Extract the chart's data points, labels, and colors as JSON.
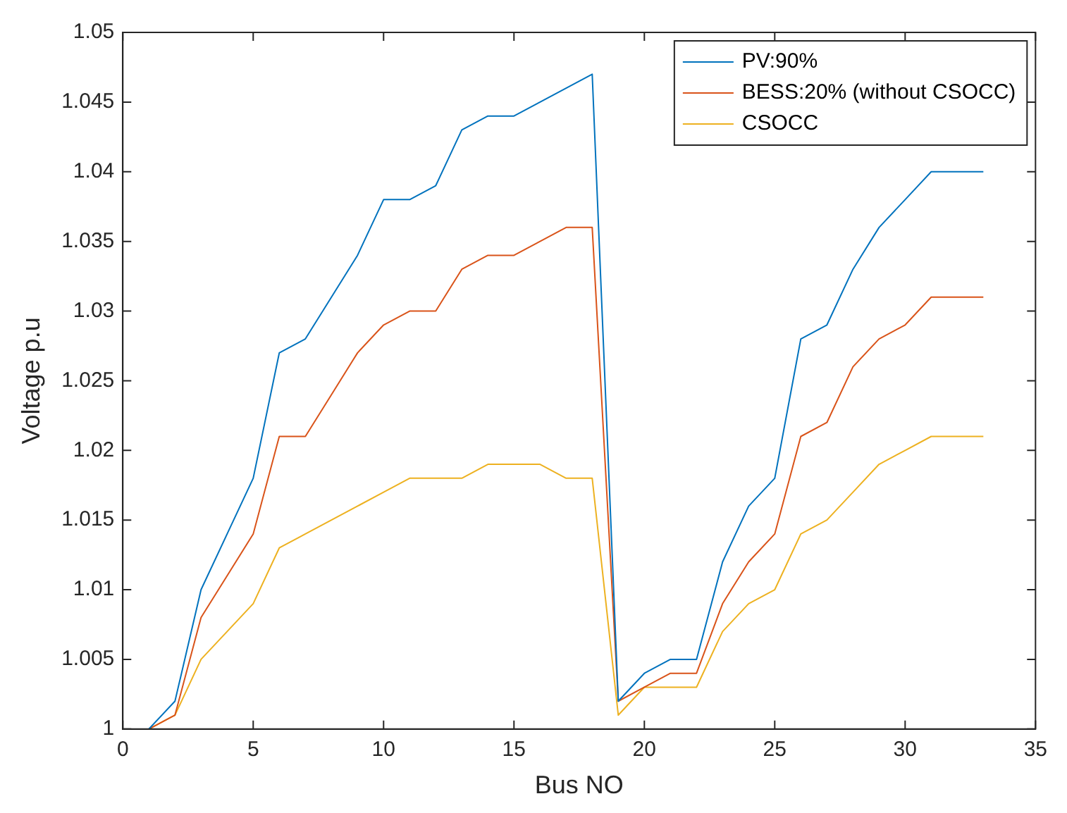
{
  "chart_data": {
    "type": "line",
    "xlabel": "Bus NO",
    "ylabel": "Voltage p.u",
    "x": [
      1,
      2,
      3,
      4,
      5,
      6,
      7,
      8,
      9,
      10,
      11,
      12,
      13,
      14,
      15,
      16,
      17,
      18,
      19,
      20,
      21,
      22,
      23,
      24,
      25,
      26,
      27,
      28,
      29,
      30,
      31,
      32,
      33
    ],
    "series": [
      {
        "name": "PV:90%",
        "color": "#0072bd",
        "values": [
          1.0,
          1.002,
          1.01,
          1.014,
          1.018,
          1.027,
          1.028,
          1.031,
          1.034,
          1.038,
          1.038,
          1.039,
          1.043,
          1.044,
          1.044,
          1.045,
          1.046,
          1.047,
          1.002,
          1.004,
          1.005,
          1.005,
          1.012,
          1.016,
          1.018,
          1.028,
          1.029,
          1.033,
          1.036,
          1.038,
          1.04,
          1.04,
          1.04
        ]
      },
      {
        "name": "BESS:20% (without CSOCC)",
        "color": "#d95319",
        "values": [
          1.0,
          1.001,
          1.008,
          1.011,
          1.014,
          1.021,
          1.021,
          1.024,
          1.027,
          1.029,
          1.03,
          1.03,
          1.033,
          1.034,
          1.034,
          1.035,
          1.036,
          1.036,
          1.002,
          1.003,
          1.004,
          1.004,
          1.009,
          1.012,
          1.014,
          1.021,
          1.022,
          1.026,
          1.028,
          1.029,
          1.031,
          1.031,
          1.031
        ]
      },
      {
        "name": "CSOCC",
        "color": "#edb120",
        "values": [
          1.0,
          1.001,
          1.005,
          1.007,
          1.009,
          1.013,
          1.014,
          1.015,
          1.016,
          1.017,
          1.018,
          1.018,
          1.018,
          1.019,
          1.019,
          1.019,
          1.018,
          1.018,
          1.001,
          1.003,
          1.003,
          1.003,
          1.007,
          1.009,
          1.01,
          1.014,
          1.015,
          1.017,
          1.019,
          1.02,
          1.021,
          1.021,
          1.021
        ]
      }
    ],
    "xlim": [
      0,
      35
    ],
    "xticks": [
      0,
      5,
      10,
      15,
      20,
      25,
      30,
      35
    ],
    "ylim": [
      1,
      1.05
    ],
    "yticks": [
      1,
      1.005,
      1.01,
      1.015,
      1.02,
      1.025,
      1.03,
      1.035,
      1.04,
      1.045,
      1.05
    ],
    "legend": "top right",
    "grid": false,
    "marker": "none",
    "line_style": "solid"
  }
}
